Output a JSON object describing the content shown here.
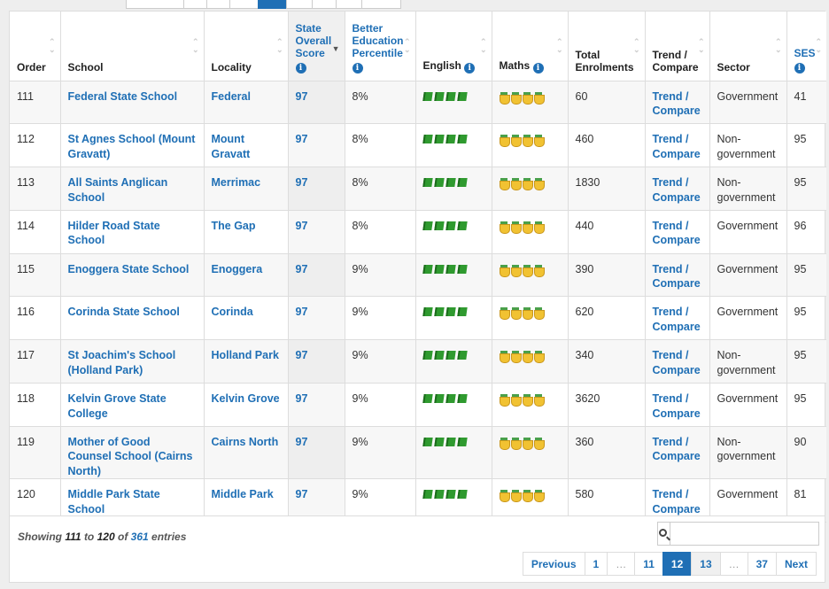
{
  "columns": [
    {
      "label": "Order",
      "info": false
    },
    {
      "label": "School",
      "info": false
    },
    {
      "label": "Locality",
      "info": false
    },
    {
      "label": "State Overall Score",
      "info": true
    },
    {
      "label": "Better Education Percentile",
      "info": true
    },
    {
      "label": "English",
      "info": true
    },
    {
      "label": "Maths",
      "info": true
    },
    {
      "label": "Total Enrolments",
      "info": false
    },
    {
      "label": "Trend / Compare",
      "info": false
    },
    {
      "label": "Sector",
      "info": false
    },
    {
      "label": "SES",
      "info": true
    }
  ],
  "rows": [
    {
      "order": "111",
      "school": "Federal State School",
      "locality": "Federal",
      "score": "97",
      "percentile": "8%",
      "enrolments": "60",
      "trend": "Trend / Compare",
      "sector": "Government",
      "ses": "41"
    },
    {
      "order": "112",
      "school": "St Agnes School (Mount Gravatt)",
      "locality": "Mount Gravatt",
      "score": "97",
      "percentile": "8%",
      "enrolments": "460",
      "trend": "Trend / Compare",
      "sector": "Non-government",
      "ses": "95"
    },
    {
      "order": "113",
      "school": "All Saints Anglican School",
      "locality": "Merrimac",
      "score": "97",
      "percentile": "8%",
      "enrolments": "1830",
      "trend": "Trend / Compare",
      "sector": "Non-government",
      "ses": "95"
    },
    {
      "order": "114",
      "school": "Hilder Road State School",
      "locality": "The Gap",
      "score": "97",
      "percentile": "8%",
      "enrolments": "440",
      "trend": "Trend / Compare",
      "sector": "Government",
      "ses": "96"
    },
    {
      "order": "115",
      "school": "Enoggera State School",
      "locality": "Enoggera",
      "score": "97",
      "percentile": "9%",
      "enrolments": "390",
      "trend": "Trend / Compare",
      "sector": "Government",
      "ses": "95"
    },
    {
      "order": "116",
      "school": "Corinda State School",
      "locality": "Corinda",
      "score": "97",
      "percentile": "9%",
      "enrolments": "620",
      "trend": "Trend / Compare",
      "sector": "Government",
      "ses": "95"
    },
    {
      "order": "117",
      "school": "St Joachim's School (Holland Park)",
      "locality": "Holland Park",
      "score": "97",
      "percentile": "9%",
      "enrolments": "340",
      "trend": "Trend / Compare",
      "sector": "Non-government",
      "ses": "95"
    },
    {
      "order": "118",
      "school": "Kelvin Grove State College",
      "locality": "Kelvin Grove",
      "score": "97",
      "percentile": "9%",
      "enrolments": "3620",
      "trend": "Trend / Compare",
      "sector": "Government",
      "ses": "95"
    },
    {
      "order": "119",
      "school": "Mother of Good Counsel School (Cairns North)",
      "locality": "Cairns North",
      "score": "97",
      "percentile": "9%",
      "enrolments": "360",
      "trend": "Trend / Compare",
      "sector": "Non-government",
      "ses": "90"
    },
    {
      "order": "120",
      "school": "Middle Park State School",
      "locality": "Middle Park",
      "score": "97",
      "percentile": "9%",
      "enrolments": "580",
      "trend": "Trend / Compare",
      "sector": "Government",
      "ses": "81"
    }
  ],
  "english_rating": 4,
  "maths_rating": 4,
  "footer": {
    "showing_prefix": "Showing",
    "from": "111",
    "to_word": "to",
    "to": "120",
    "of_word": "of",
    "total": "361",
    "entries_word": "entries"
  },
  "pagination": [
    "Previous",
    "1",
    "…",
    "11",
    "12",
    "13",
    "…",
    "37",
    "Next"
  ],
  "active_page": "12",
  "accent_color": "#1f6fb5"
}
